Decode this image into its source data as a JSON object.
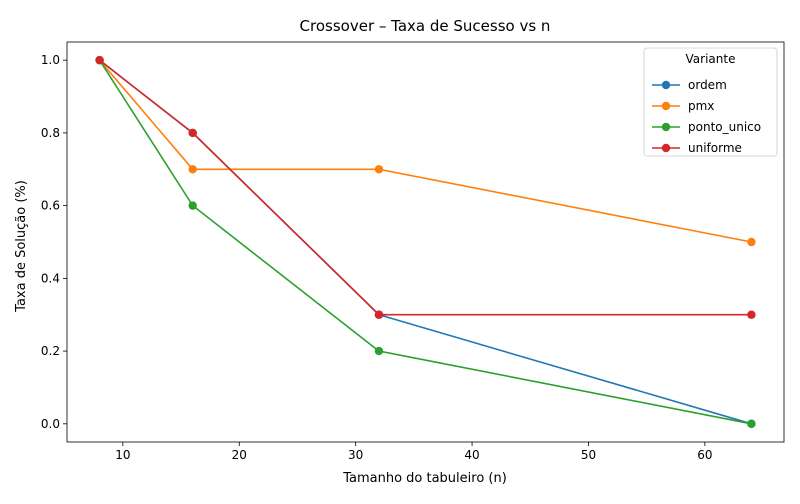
{
  "chart_data": {
    "type": "line",
    "title": "Crossover – Taxa de Sucesso vs n",
    "xlabel": "Tamanho do tabuleiro (n)",
    "ylabel": "Taxa de Solução (%)",
    "xlim": [
      5.2,
      66.8
    ],
    "ylim": [
      -0.05,
      1.05
    ],
    "xticks": [
      10,
      20,
      30,
      40,
      50,
      60
    ],
    "yticks": [
      0.0,
      0.2,
      0.4,
      0.6,
      0.8,
      1.0
    ],
    "ytick_labels": [
      "0.0",
      "0.2",
      "0.4",
      "0.6",
      "0.8",
      "1.0"
    ],
    "x": [
      8,
      16,
      32,
      64
    ],
    "grid": false,
    "legend": {
      "title": "Variante",
      "placement": "top-right"
    },
    "series": [
      {
        "name": "ordem",
        "color": "#1f77b4",
        "values": [
          1.0,
          0.8,
          0.3,
          0.0
        ]
      },
      {
        "name": "pmx",
        "color": "#ff7f0e",
        "values": [
          1.0,
          0.7,
          0.7,
          0.5
        ]
      },
      {
        "name": "ponto_unico",
        "color": "#2ca02c",
        "values": [
          1.0,
          0.6,
          0.2,
          0.0
        ]
      },
      {
        "name": "uniforme",
        "color": "#d62728",
        "values": [
          1.0,
          0.8,
          0.3,
          0.3
        ]
      }
    ]
  }
}
